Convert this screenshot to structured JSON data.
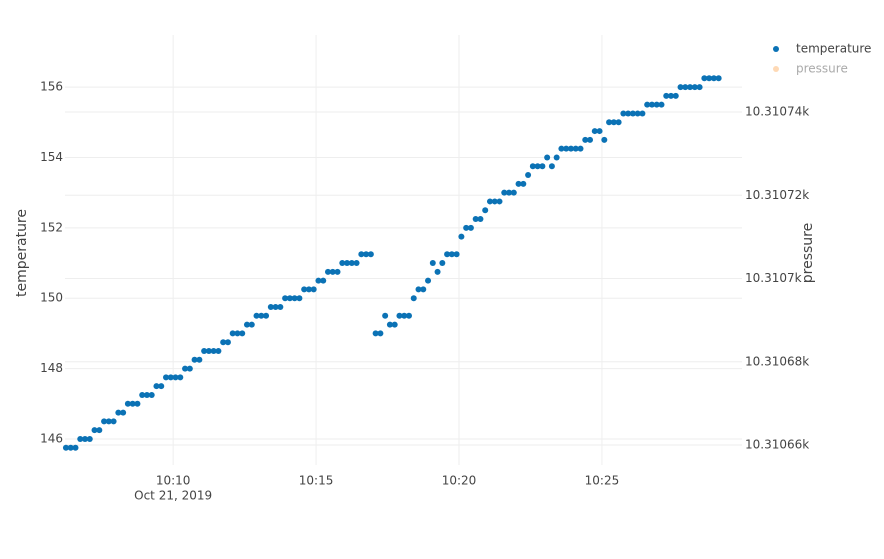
{
  "chart_data": {
    "type": "scatter",
    "y_label": "temperature",
    "y2_label": "pressure",
    "x_date_label": "Oct 21, 2019",
    "x": [
      "2019-10-21 10:06:15",
      "2019-10-21 10:06:25",
      "2019-10-21 10:06:35",
      "2019-10-21 10:06:45",
      "2019-10-21 10:06:55",
      "2019-10-21 10:07:05",
      "2019-10-21 10:07:15",
      "2019-10-21 10:07:25",
      "2019-10-21 10:07:35",
      "2019-10-21 10:07:45",
      "2019-10-21 10:07:55",
      "2019-10-21 10:08:05",
      "2019-10-21 10:08:15",
      "2019-10-21 10:08:25",
      "2019-10-21 10:08:35",
      "2019-10-21 10:08:45",
      "2019-10-21 10:08:55",
      "2019-10-21 10:09:05",
      "2019-10-21 10:09:15",
      "2019-10-21 10:09:25",
      "2019-10-21 10:09:35",
      "2019-10-21 10:09:45",
      "2019-10-21 10:09:55",
      "2019-10-21 10:10:05",
      "2019-10-21 10:10:15",
      "2019-10-21 10:10:25",
      "2019-10-21 10:10:35",
      "2019-10-21 10:10:45",
      "2019-10-21 10:10:55",
      "2019-10-21 10:11:05",
      "2019-10-21 10:11:15",
      "2019-10-21 10:11:25",
      "2019-10-21 10:11:35",
      "2019-10-21 10:11:45",
      "2019-10-21 10:11:55",
      "2019-10-21 10:12:05",
      "2019-10-21 10:12:15",
      "2019-10-21 10:12:25",
      "2019-10-21 10:12:35",
      "2019-10-21 10:12:45",
      "2019-10-21 10:12:55",
      "2019-10-21 10:13:05",
      "2019-10-21 10:13:15",
      "2019-10-21 10:13:25",
      "2019-10-21 10:13:35",
      "2019-10-21 10:13:45",
      "2019-10-21 10:13:55",
      "2019-10-21 10:14:05",
      "2019-10-21 10:14:15",
      "2019-10-21 10:14:25",
      "2019-10-21 10:14:35",
      "2019-10-21 10:14:45",
      "2019-10-21 10:14:55",
      "2019-10-21 10:15:05",
      "2019-10-21 10:15:15",
      "2019-10-21 10:15:25",
      "2019-10-21 10:15:35",
      "2019-10-21 10:15:45",
      "2019-10-21 10:15:55",
      "2019-10-21 10:16:05",
      "2019-10-21 10:16:15",
      "2019-10-21 10:16:25",
      "2019-10-21 10:16:35",
      "2019-10-21 10:16:45",
      "2019-10-21 10:16:55",
      "2019-10-21 10:17:05",
      "2019-10-21 10:17:15",
      "2019-10-21 10:17:25",
      "2019-10-21 10:17:35",
      "2019-10-21 10:17:45",
      "2019-10-21 10:17:55",
      "2019-10-21 10:18:05",
      "2019-10-21 10:18:15",
      "2019-10-21 10:18:25",
      "2019-10-21 10:18:35",
      "2019-10-21 10:18:45",
      "2019-10-21 10:18:55",
      "2019-10-21 10:19:05",
      "2019-10-21 10:19:15",
      "2019-10-21 10:19:25",
      "2019-10-21 10:19:35",
      "2019-10-21 10:19:45",
      "2019-10-21 10:19:55",
      "2019-10-21 10:20:05",
      "2019-10-21 10:20:15",
      "2019-10-21 10:20:25",
      "2019-10-21 10:20:35",
      "2019-10-21 10:20:45",
      "2019-10-21 10:20:55",
      "2019-10-21 10:21:05",
      "2019-10-21 10:21:15",
      "2019-10-21 10:21:25",
      "2019-10-21 10:21:35",
      "2019-10-21 10:21:45",
      "2019-10-21 10:21:55",
      "2019-10-21 10:22:05",
      "2019-10-21 10:22:15",
      "2019-10-21 10:22:25",
      "2019-10-21 10:22:35",
      "2019-10-21 10:22:45",
      "2019-10-21 10:22:55",
      "2019-10-21 10:23:05",
      "2019-10-21 10:23:15",
      "2019-10-21 10:23:25",
      "2019-10-21 10:23:35",
      "2019-10-21 10:23:45",
      "2019-10-21 10:23:55",
      "2019-10-21 10:24:05",
      "2019-10-21 10:24:15",
      "2019-10-21 10:24:25",
      "2019-10-21 10:24:35",
      "2019-10-21 10:24:45",
      "2019-10-21 10:24:55",
      "2019-10-21 10:25:05",
      "2019-10-21 10:25:15",
      "2019-10-21 10:25:25",
      "2019-10-21 10:25:35",
      "2019-10-21 10:25:45",
      "2019-10-21 10:25:55",
      "2019-10-21 10:26:05",
      "2019-10-21 10:26:15",
      "2019-10-21 10:26:25",
      "2019-10-21 10:26:35",
      "2019-10-21 10:26:45",
      "2019-10-21 10:26:55",
      "2019-10-21 10:27:05",
      "2019-10-21 10:27:15",
      "2019-10-21 10:27:25",
      "2019-10-21 10:27:35",
      "2019-10-21 10:27:45",
      "2019-10-21 10:27:55",
      "2019-10-21 10:28:05",
      "2019-10-21 10:28:15",
      "2019-10-21 10:28:25",
      "2019-10-21 10:28:35",
      "2019-10-21 10:28:45",
      "2019-10-21 10:28:55",
      "2019-10-21 10:29:05"
    ],
    "series": [
      {
        "name": "temperature",
        "color": "#0b72b5",
        "values": [
          145.75,
          145.75,
          145.75,
          146,
          146,
          146,
          146.25,
          146.25,
          146.5,
          146.5,
          146.5,
          146.75,
          146.75,
          147,
          147,
          147,
          147.25,
          147.25,
          147.25,
          147.5,
          147.5,
          147.75,
          147.75,
          147.75,
          147.75,
          148,
          148,
          148.25,
          148.25,
          148.5,
          148.5,
          148.5,
          148.5,
          148.75,
          148.75,
          149,
          149,
          149,
          149.25,
          149.25,
          149.5,
          149.5,
          149.5,
          149.75,
          149.75,
          149.75,
          150,
          150,
          150,
          150,
          150.25,
          150.25,
          150.25,
          150.5,
          150.5,
          150.75,
          150.75,
          150.75,
          151,
          151,
          151,
          151,
          151.25,
          151.25,
          151.25,
          149,
          149,
          149.5,
          149.25,
          149.25,
          149.5,
          149.5,
          149.5,
          150,
          150.25,
          150.25,
          150.5,
          151,
          150.75,
          151,
          151.25,
          151.25,
          151.25,
          151.75,
          152,
          152,
          152.25,
          152.25,
          152.5,
          152.75,
          152.75,
          152.75,
          153,
          153,
          153,
          153.25,
          153.25,
          153.5,
          153.75,
          153.75,
          153.75,
          154,
          153.75,
          154,
          154.25,
          154.25,
          154.25,
          154.25,
          154.25,
          154.5,
          154.5,
          154.75,
          154.75,
          154.5,
          155,
          155,
          155,
          155.25,
          155.25,
          155.25,
          155.25,
          155.25,
          155.5,
          155.5,
          155.5,
          155.5,
          155.75,
          155.75,
          155.75,
          156,
          156,
          156,
          156,
          156,
          156.25,
          156.25,
          156.25,
          156.25
        ]
      },
      {
        "name": "pressure",
        "color": "#fdbf84",
        "axis": "y2",
        "visible": "legendonly"
      }
    ],
    "xlim": [
      "2019-10-21 10:06:13",
      "2019-10-21 10:29:54"
    ],
    "xticks": [
      {
        "value": "2019-10-21 10:10:00",
        "label": "10:10"
      },
      {
        "value": "2019-10-21 10:15:00",
        "label": "10:15"
      },
      {
        "value": "2019-10-21 10:20:00",
        "label": "10:20"
      },
      {
        "value": "2019-10-21 10:25:00",
        "label": "10:25"
      }
    ],
    "ylim": [
      145.26,
      157.48
    ],
    "yticks": [
      146,
      148,
      150,
      152,
      154,
      156
    ],
    "y2lim": [
      10310.6552,
      10310.7585
    ],
    "y2ticks": [
      {
        "value": 10310.66,
        "label": "10.31066k"
      },
      {
        "value": 10310.68,
        "label": "10.31068k"
      },
      {
        "value": 10310.7,
        "label": "10.3107k"
      },
      {
        "value": 10310.72,
        "label": "10.31072k"
      },
      {
        "value": 10310.74,
        "label": "10.31074k"
      }
    ],
    "grid": true,
    "legend": "top-right"
  }
}
